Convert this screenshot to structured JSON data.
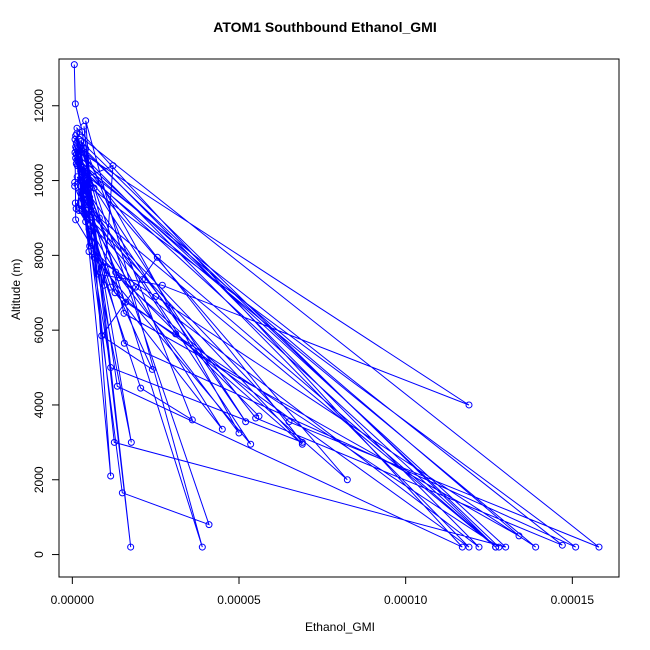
{
  "chart_data": {
    "type": "line",
    "title": "ATOM1 Southbound Ethanol_GMI",
    "xlabel": "Ethanol_GMI",
    "ylabel": "Altitude (m)",
    "xlim": [
      -4e-06,
      0.000164
    ],
    "ylim": [
      -600,
      13250
    ],
    "x_ticks": [
      0,
      5e-05,
      0.0001,
      0.00015
    ],
    "x_tick_labels": [
      "0.00000",
      "0.00005",
      "0.00010",
      "0.00015"
    ],
    "y_ticks": [
      0,
      2000,
      4000,
      6000,
      8000,
      10000,
      12000
    ],
    "y_tick_labels": [
      "0",
      "2000",
      "4000",
      "6000",
      "8000",
      "10000",
      "12000"
    ],
    "grid": false,
    "marker": "open-circle",
    "color": "#0000ff",
    "series": [
      {
        "x": [
          6e-07,
          9e-07,
          3e-06,
          4.5e-06,
          1.75e-05,
          3.5e-06,
          5.2e-06,
          1e-06,
          2.7e-06,
          1.15e-05,
          4e-06,
          3.9e-05,
          1e-06,
          2.5e-06,
          4.4e-06,
          1.26e-05,
          0.00013,
          8e-07,
          4.2e-06,
          5.2e-06,
          5.8e-06,
          5.8e-06,
          2e-06,
          1.4e-06,
          1.28e-05,
          0.000119,
          1.2e-06,
          3e-06,
          8.1e-06,
          0.000127,
          2.6e-06,
          1.55e-05,
          0.000134,
          1e-06,
          3.6e-06,
          1.56e-05,
          0.000151,
          2.5e-06,
          3e-06,
          5e-06,
          1.77e-05,
          4.5e-06,
          5.8e-06,
          2.4e-05,
          8.8e-06,
          2.55e-05,
          0.000127,
          1.2e-06,
          3.4e-06,
          1.5e-05,
          4.1e-05,
          2.2e-06,
          3.2e-06,
          5.5e-05,
          0.000147,
          3.2e-06,
          6.5e-06,
          2.5e-05,
          0.000139,
          3.5e-06,
          1.15e-06,
          2.1e-05,
          5.35e-05,
          5e-06,
          2.8e-06,
          3.1e-05,
          6.9e-05,
          9e-07,
          4.3e-06,
          6.5e-05,
          0.000158,
          1.3e-06,
          6.5e-06,
          5.2e-05,
          1.45e-06,
          2.5e-06,
          1.15e-05,
          6.9e-05,
          1.2e-06,
          3.2e-06,
          1.4e-05,
          8.25e-05,
          1.5e-06,
          5e-06,
          1.9e-05,
          0.000122,
          8e-07,
          1e-06,
          1.6e-05,
          0.000128,
          1.2e-06,
          4e-06,
          1.35e-05,
          0.000117,
          1.4e-06,
          2.8e-06,
          2.05e-05,
          3.6e-05,
          4e-06,
          7.5e-06,
          2.7e-05,
          0.000119,
          1.8e-06,
          2e-06,
          1.3e-05,
          5e-05,
          2.5e-06,
          4e-06,
          9.5e-06,
          1.22e-05,
          7e-07,
          7e-07,
          4e-06,
          4.5e-05,
          1.15e-05,
          2.3e-06,
          5.2e-06,
          5.6e-05
        ],
        "y": [
          13100,
          12050,
          11300,
          10200,
          200,
          11450,
          9800,
          11200,
          10300,
          2100,
          11600,
          200,
          10900,
          10250,
          9700,
          3000,
          200,
          10750,
          9900,
          9550,
          9300,
          9100,
          11100,
          10550,
          7000,
          200,
          10850,
          10100,
          9000,
          200,
          11050,
          6450,
          500,
          10600,
          9400,
          5650,
          200,
          10000,
          9250,
          8700,
          3000,
          9900,
          8500,
          4950,
          5850,
          7950,
          200,
          10450,
          9650,
          1650,
          800,
          10950,
          9500,
          3650,
          250,
          10350,
          7950,
          6900,
          200,
          10200,
          9250,
          7350,
          2950,
          8100,
          9700,
          5900,
          2950,
          9400,
          9200,
          3550,
          200,
          11250,
          9800,
          3550,
          10100,
          9850,
          5000,
          3000,
          10700,
          9600,
          7400,
          2000,
          10400,
          9350,
          7150,
          200,
          11100,
          8950,
          6750,
          200,
          11000,
          10250,
          4500,
          200,
          11400,
          9200,
          4450,
          3600,
          10850,
          7500,
          7200,
          4000,
          10800,
          9200,
          7550,
          3250,
          10900,
          8900,
          7200,
          10400,
          9950,
          9850,
          9100,
          3350,
          7150,
          9700,
          8250,
          3700
        ]
      }
    ]
  }
}
